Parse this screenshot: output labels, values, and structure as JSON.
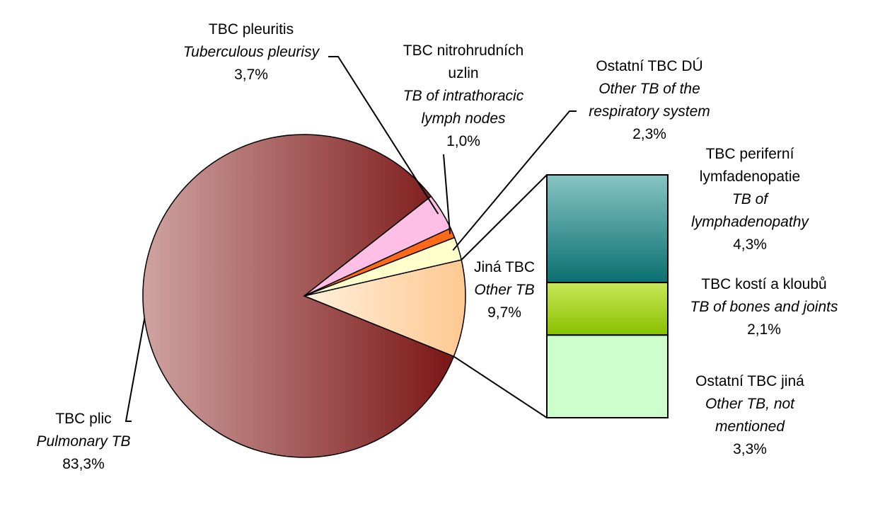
{
  "colors": {
    "pulmonary_light": "#cfa3a1",
    "pulmonary_dark": "#7a1616",
    "pleurisy": "#ffbee6",
    "intrathoracic": "#ff6a1a",
    "respiratory_other": "#ffffcc",
    "other_tb_light": "#fff0dc",
    "other_tb_dark": "#ffc890",
    "lymph_light": "#87c4c4",
    "lymph_dark": "#0b7070",
    "bones_light": "#c8e858",
    "bones_dark": "#88c000",
    "not_mentioned": "#ccffcc",
    "line": "#000000"
  },
  "chart_data": {
    "type": "pie",
    "subtype": "bar-of-pie",
    "title": "",
    "slices": [
      {
        "id": "pulmonary",
        "label_cz": "TBC plic",
        "label_en": "Pulmonary TB",
        "value": 83.3,
        "display": "83,3%"
      },
      {
        "id": "pleurisy",
        "label_cz": "TBC pleuritis",
        "label_en": "Tuberculous pleurisy",
        "value": 3.7,
        "display": "3,7%"
      },
      {
        "id": "intrathoracic",
        "label_cz": "TBC nitrohrudních uzlin",
        "label_en": "TB of intrathoracic lymph nodes",
        "value": 1.0,
        "display": "1,0%"
      },
      {
        "id": "respiratory_other",
        "label_cz": "Ostatní TBC DÚ",
        "label_en": "Other TB of the respiratory system",
        "value": 2.3,
        "display": "2,3%"
      },
      {
        "id": "other_tb",
        "label_cz": "Jiná TBC",
        "label_en": "Other TB",
        "value": 9.7,
        "display": "9,7%"
      }
    ],
    "breakdown_of": "other_tb",
    "breakdown": [
      {
        "id": "lymph",
        "label_cz": "TBC periferní lymfadenopatie",
        "label_en": "TB of lymphadenopathy",
        "value": 4.3,
        "display": "4,3%"
      },
      {
        "id": "bones",
        "label_cz": "TBC kostí a kloubů",
        "label_en": "TB of bones and joints",
        "value": 2.1,
        "display": "2,1%"
      },
      {
        "id": "not_mentioned",
        "label_cz": "Ostatní TBC jiná",
        "label_en": "Other TB, not mentioned",
        "value": 3.3,
        "display": "3,3%"
      }
    ]
  },
  "labels": {
    "pulmonary": {
      "cz": "TBC plic",
      "en": "Pulmonary TB",
      "pct": "83,3%"
    },
    "pleurisy": {
      "cz": "TBC pleuritis",
      "en": "Tuberculous pleurisy",
      "pct": "3,7%"
    },
    "intrathoracic": {
      "cz1": "TBC nitrohrudních",
      "cz2": "uzlin",
      "en1": "TB of intrathoracic",
      "en2": "lymph nodes",
      "pct": "1,0%"
    },
    "respiratory_other": {
      "cz": "Ostatní TBC DÚ",
      "en1": "Other TB of the",
      "en2": "respiratory system",
      "pct": "2,3%"
    },
    "other_tb": {
      "cz": "Jiná TBC",
      "en": "Other TB",
      "pct": "9,7%"
    },
    "lymph": {
      "cz1": "TBC periferní",
      "cz2": "lymfadenopatie",
      "en1": "TB of",
      "en2": "lymphadenopathy",
      "pct": "4,3%"
    },
    "bones": {
      "cz": "TBC kostí a kloubů",
      "en": "TB of bones and joints",
      "pct": "2,1%"
    },
    "not_mentioned": {
      "cz": "Ostatní TBC jiná",
      "en1": "Other TB, not",
      "en2": "mentioned",
      "pct": "3,3%"
    }
  }
}
